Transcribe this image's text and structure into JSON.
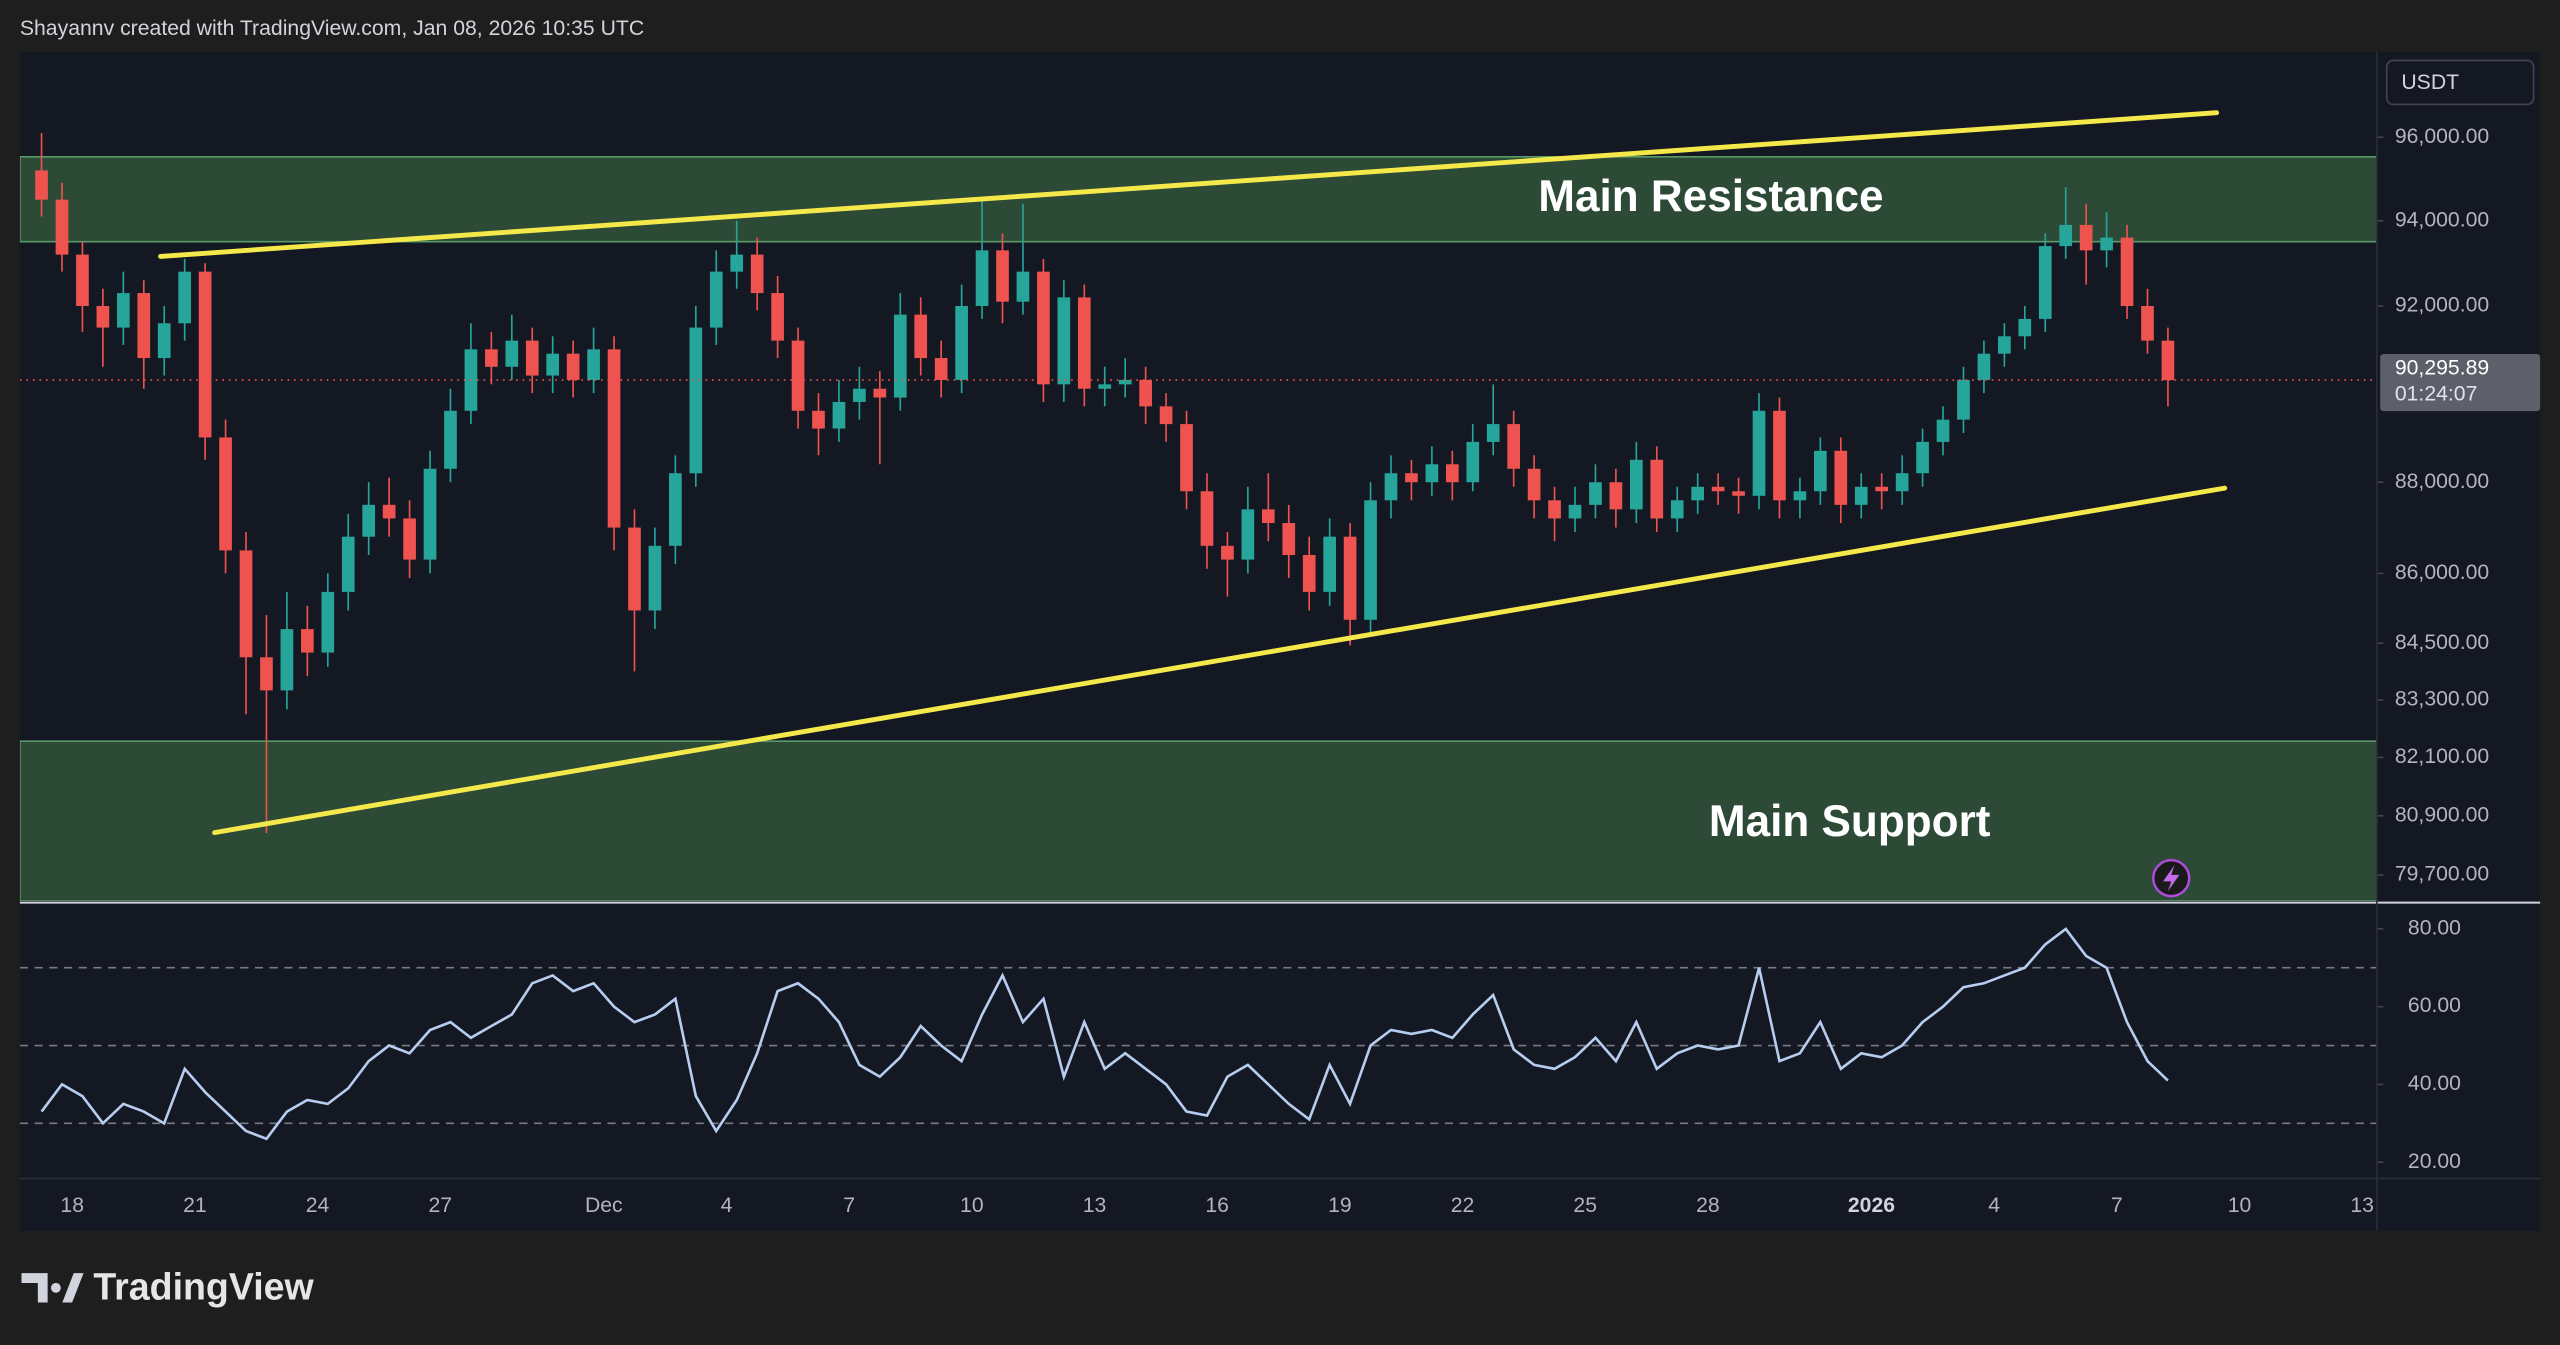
{
  "header": "Shayannv created with TradingView.com, Jan 08, 2026 10:35 UTC",
  "brand": "TradingView",
  "chart_data": {
    "type": "candlestick",
    "currency": "USDT",
    "log_scale": true,
    "up_color": "#26a69a",
    "down_color": "#ef5350",
    "xlim": [
      16.72,
      74.36
    ],
    "xticks": [
      18,
      21,
      24,
      27,
      {
        "value": 31,
        "label": "Dec"
      },
      {
        "value": 34,
        "label": "4"
      },
      {
        "value": 37,
        "label": "7"
      },
      {
        "value": 40,
        "label": "10"
      },
      {
        "value": 43,
        "label": "13"
      },
      {
        "value": 46,
        "label": "16"
      },
      {
        "value": 49,
        "label": "19"
      },
      {
        "value": 52,
        "label": "22"
      },
      {
        "value": 55,
        "label": "25"
      },
      {
        "value": 58,
        "label": "28"
      },
      {
        "value": 62,
        "label": "2026"
      },
      {
        "value": 65,
        "label": "4"
      },
      {
        "value": 68,
        "label": "7"
      },
      {
        "value": 71,
        "label": "10"
      },
      {
        "value": 74,
        "label": "13"
      }
    ],
    "ylim": [
      79180,
      98080
    ],
    "yticks": [
      {
        "value": 96000,
        "label": "96,000.00"
      },
      {
        "value": 94000,
        "label": "94,000.00"
      },
      {
        "value": 92000,
        "label": "92,000.00"
      },
      {
        "value": 88000,
        "label": "88,000.00"
      },
      {
        "value": 86000,
        "label": "86,000.00"
      },
      {
        "value": 84500,
        "label": "84,500.00"
      },
      {
        "value": 83300,
        "label": "83,300.00"
      },
      {
        "value": 82100,
        "label": "82,100.00"
      },
      {
        "value": 80900,
        "label": "80,900.00"
      },
      {
        "value": 79700,
        "label": "79,700.00"
      }
    ],
    "last_price": {
      "value": 90295.89,
      "label": "90,295.89"
    },
    "countdown": "01:24:07",
    "x": [
      17.25,
      17.75,
      18.25,
      18.75,
      19.25,
      19.75,
      20.25,
      20.75,
      21.25,
      21.75,
      22.25,
      22.75,
      23.25,
      23.75,
      24.25,
      24.75,
      25.25,
      25.75,
      26.25,
      26.75,
      27.25,
      27.75,
      28.25,
      28.75,
      29.25,
      29.75,
      30.25,
      30.75,
      31.25,
      31.75,
      32.25,
      32.75,
      33.25,
      33.75,
      34.25,
      34.75,
      35.25,
      35.75,
      36.25,
      36.75,
      37.25,
      37.75,
      38.25,
      38.75,
      39.25,
      39.75,
      40.25,
      40.75,
      41.25,
      41.75,
      42.25,
      42.75,
      43.25,
      43.75,
      44.25,
      44.75,
      45.25,
      45.75,
      46.25,
      46.75,
      47.25,
      47.75,
      48.25,
      48.75,
      49.25,
      49.75,
      50.25,
      50.75,
      51.25,
      51.75,
      52.25,
      52.75,
      53.25,
      53.75,
      54.25,
      54.75,
      55.25,
      55.75,
      56.25,
      56.75,
      57.25,
      57.75,
      58.25,
      58.75,
      59.25,
      59.75,
      60.25,
      60.75,
      61.25,
      61.75,
      62.25,
      62.75,
      63.25,
      63.75,
      64.25,
      64.75,
      65.25,
      65.75,
      66.25,
      66.75,
      67.25,
      67.75,
      68.25,
      68.75,
      69.25
    ],
    "candles": [
      [
        95200,
        96100,
        94100,
        94500
      ],
      [
        94500,
        94900,
        92800,
        93200
      ],
      [
        93200,
        93500,
        91400,
        92000
      ],
      [
        92000,
        92400,
        90600,
        91500
      ],
      [
        91500,
        92800,
        91100,
        92300
      ],
      [
        92300,
        92600,
        90100,
        90800
      ],
      [
        90800,
        92000,
        90400,
        91600
      ],
      [
        91600,
        93100,
        91200,
        92800
      ],
      [
        92800,
        93000,
        88500,
        89000
      ],
      [
        89000,
        89400,
        86000,
        86500
      ],
      [
        86500,
        86900,
        83000,
        84200
      ],
      [
        84200,
        85100,
        80550,
        83500
      ],
      [
        83500,
        85600,
        83100,
        84800
      ],
      [
        84800,
        85300,
        83800,
        84300
      ],
      [
        84300,
        86000,
        84000,
        85600
      ],
      [
        85600,
        87300,
        85200,
        86800
      ],
      [
        86800,
        88000,
        86400,
        87500
      ],
      [
        87500,
        88100,
        86800,
        87200
      ],
      [
        87200,
        87600,
        85900,
        86300
      ],
      [
        86300,
        88700,
        86000,
        88300
      ],
      [
        88300,
        90100,
        88000,
        89600
      ],
      [
        89600,
        91600,
        89300,
        91000
      ],
      [
        91000,
        91400,
        90200,
        90600
      ],
      [
        90600,
        91800,
        90300,
        91200
      ],
      [
        91200,
        91500,
        90000,
        90400
      ],
      [
        90400,
        91300,
        90000,
        90900
      ],
      [
        90900,
        91200,
        89900,
        90300
      ],
      [
        90300,
        91500,
        90000,
        91000
      ],
      [
        91000,
        91300,
        86500,
        87000
      ],
      [
        87000,
        87400,
        83900,
        85200
      ],
      [
        85200,
        87000,
        84800,
        86600
      ],
      [
        86600,
        88600,
        86200,
        88200
      ],
      [
        88200,
        92000,
        87900,
        91500
      ],
      [
        91500,
        93300,
        91100,
        92800
      ],
      [
        92800,
        94000,
        92400,
        93200
      ],
      [
        93200,
        93600,
        91900,
        92300
      ],
      [
        92300,
        92700,
        90800,
        91200
      ],
      [
        91200,
        91500,
        89200,
        89600
      ],
      [
        89600,
        90000,
        88600,
        89200
      ],
      [
        89200,
        90300,
        88900,
        89800
      ],
      [
        89800,
        90600,
        89400,
        90100
      ],
      [
        90100,
        90500,
        88400,
        89900
      ],
      [
        89900,
        92300,
        89600,
        91800
      ],
      [
        91800,
        92200,
        90400,
        90800
      ],
      [
        90800,
        91200,
        89900,
        90300
      ],
      [
        90300,
        92500,
        90000,
        92000
      ],
      [
        92000,
        94500,
        91700,
        93300
      ],
      [
        93300,
        93700,
        91600,
        92100
      ],
      [
        92100,
        94400,
        91800,
        92800
      ],
      [
        92800,
        93100,
        89800,
        90200
      ],
      [
        90200,
        92600,
        89800,
        92200
      ],
      [
        92200,
        92500,
        89700,
        90100
      ],
      [
        90100,
        90600,
        89700,
        90200
      ],
      [
        90200,
        90800,
        89900,
        90300
      ],
      [
        90300,
        90600,
        89300,
        89700
      ],
      [
        89700,
        90000,
        88900,
        89300
      ],
      [
        89300,
        89600,
        87400,
        87800
      ],
      [
        87800,
        88200,
        86100,
        86600
      ],
      [
        86600,
        86900,
        85500,
        86300
      ],
      [
        86300,
        87900,
        86000,
        87400
      ],
      [
        87400,
        88200,
        86700,
        87100
      ],
      [
        87100,
        87500,
        85900,
        86400
      ],
      [
        86400,
        86800,
        85200,
        85600
      ],
      [
        85600,
        87200,
        85300,
        86800
      ],
      [
        86800,
        87100,
        84450,
        85000
      ],
      [
        85000,
        88000,
        84700,
        87600
      ],
      [
        87600,
        88600,
        87200,
        88200
      ],
      [
        88200,
        88500,
        87600,
        88000
      ],
      [
        88000,
        88800,
        87700,
        88400
      ],
      [
        88400,
        88700,
        87600,
        88000
      ],
      [
        88000,
        89300,
        87800,
        88900
      ],
      [
        88900,
        90200,
        88600,
        89300
      ],
      [
        89300,
        89600,
        87900,
        88300
      ],
      [
        88300,
        88600,
        87200,
        87600
      ],
      [
        87600,
        87900,
        86700,
        87200
      ],
      [
        87200,
        87900,
        86900,
        87500
      ],
      [
        87500,
        88400,
        87200,
        88000
      ],
      [
        88000,
        88300,
        87000,
        87400
      ],
      [
        87400,
        88900,
        87100,
        88500
      ],
      [
        88500,
        88800,
        86900,
        87200
      ],
      [
        87200,
        87900,
        86900,
        87600
      ],
      [
        87600,
        88200,
        87300,
        87900
      ],
      [
        87900,
        88200,
        87500,
        87800
      ],
      [
        87800,
        88100,
        87300,
        87700
      ],
      [
        87700,
        90000,
        87400,
        89600
      ],
      [
        89600,
        89900,
        87200,
        87600
      ],
      [
        87600,
        88100,
        87200,
        87800
      ],
      [
        87800,
        89000,
        87500,
        88700
      ],
      [
        88700,
        89000,
        87100,
        87500
      ],
      [
        87500,
        88200,
        87200,
        87900
      ],
      [
        87900,
        88200,
        87400,
        87800
      ],
      [
        87800,
        88600,
        87500,
        88200
      ],
      [
        88200,
        89200,
        87900,
        88900
      ],
      [
        88900,
        89700,
        88600,
        89400
      ],
      [
        89400,
        90600,
        89100,
        90300
      ],
      [
        90300,
        91200,
        90000,
        90900
      ],
      [
        90900,
        91600,
        90600,
        91300
      ],
      [
        91300,
        92000,
        91000,
        91700
      ],
      [
        91700,
        93700,
        91400,
        93400
      ],
      [
        93400,
        94800,
        93100,
        93900
      ],
      [
        93900,
        94400,
        92500,
        93300
      ],
      [
        93300,
        94200,
        92900,
        93600
      ],
      [
        93600,
        93900,
        91700,
        92000
      ],
      [
        92000,
        92400,
        90900,
        91200
      ],
      [
        91200,
        91500,
        89700,
        90295.89
      ]
    ],
    "zones": [
      {
        "label": "Main Resistance",
        "y": [
          93504,
          95527
        ],
        "color": "#2c4a36"
      },
      {
        "label": "Main Support",
        "y": [
          79180,
          82437
        ],
        "color": "#2c4a36"
      }
    ],
    "trendlines": [
      {
        "x": [
          20.16,
          70.44
        ],
        "y": [
          93158,
          96595
        ],
        "color": "#f5e84a"
      },
      {
        "x": [
          21.48,
          70.64
        ],
        "y": [
          80558,
          87870
        ],
        "color": "#f5e84a"
      }
    ],
    "rsi": {
      "color": "#b7cdf0",
      "ylim": [
        15.8,
        85.9
      ],
      "yticks": [
        {
          "value": 80,
          "label": "80.00"
        },
        {
          "value": 60,
          "label": "60.00"
        },
        {
          "value": 40,
          "label": "40.00"
        },
        {
          "value": 20,
          "label": "20.00"
        }
      ],
      "bands": [
        70,
        50,
        30
      ],
      "values": [
        33,
        40,
        37,
        30,
        35,
        33,
        30,
        44,
        38,
        33,
        28,
        26,
        33,
        36,
        35,
        39,
        46,
        50,
        48,
        54,
        56,
        52,
        55,
        58,
        66,
        68,
        64,
        66,
        60,
        56,
        58,
        62,
        37,
        28,
        36,
        48,
        64,
        66,
        62,
        56,
        45,
        42,
        47,
        55,
        50,
        46,
        58,
        68,
        56,
        62,
        42,
        56,
        44,
        48,
        44,
        40,
        33,
        32,
        42,
        45,
        40,
        35,
        31,
        45,
        35,
        50,
        54,
        53,
        54,
        52,
        58,
        63,
        49,
        45,
        44,
        47,
        52,
        46,
        56,
        44,
        48,
        50,
        49,
        50,
        70,
        46,
        48,
        56,
        44,
        48,
        47,
        50,
        56,
        60,
        65,
        66,
        68,
        70,
        76,
        80,
        73,
        70,
        56,
        46,
        41
      ]
    }
  }
}
